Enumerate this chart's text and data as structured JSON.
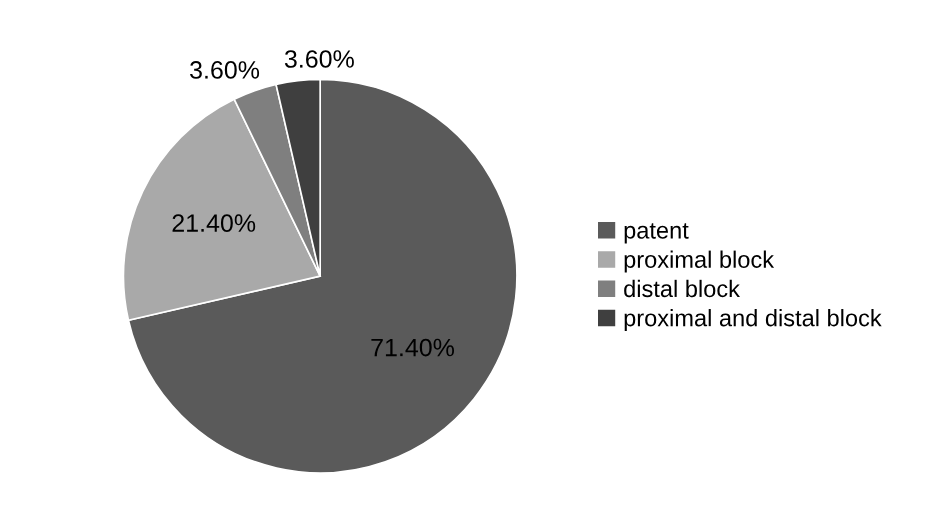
{
  "chart_data": {
    "type": "pie",
    "categories": [
      "patent",
      "proximal block",
      "distal block",
      "proximal and distal block"
    ],
    "values": [
      71.4,
      21.4,
      3.6,
      3.6
    ],
    "colors": [
      "#5a5a5a",
      "#a9a9a9",
      "#7f7f7f",
      "#3f3f3f"
    ],
    "value_labels": [
      "71.40%",
      "21.40%",
      "3.60%",
      "3.60%"
    ],
    "legend": "right"
  }
}
